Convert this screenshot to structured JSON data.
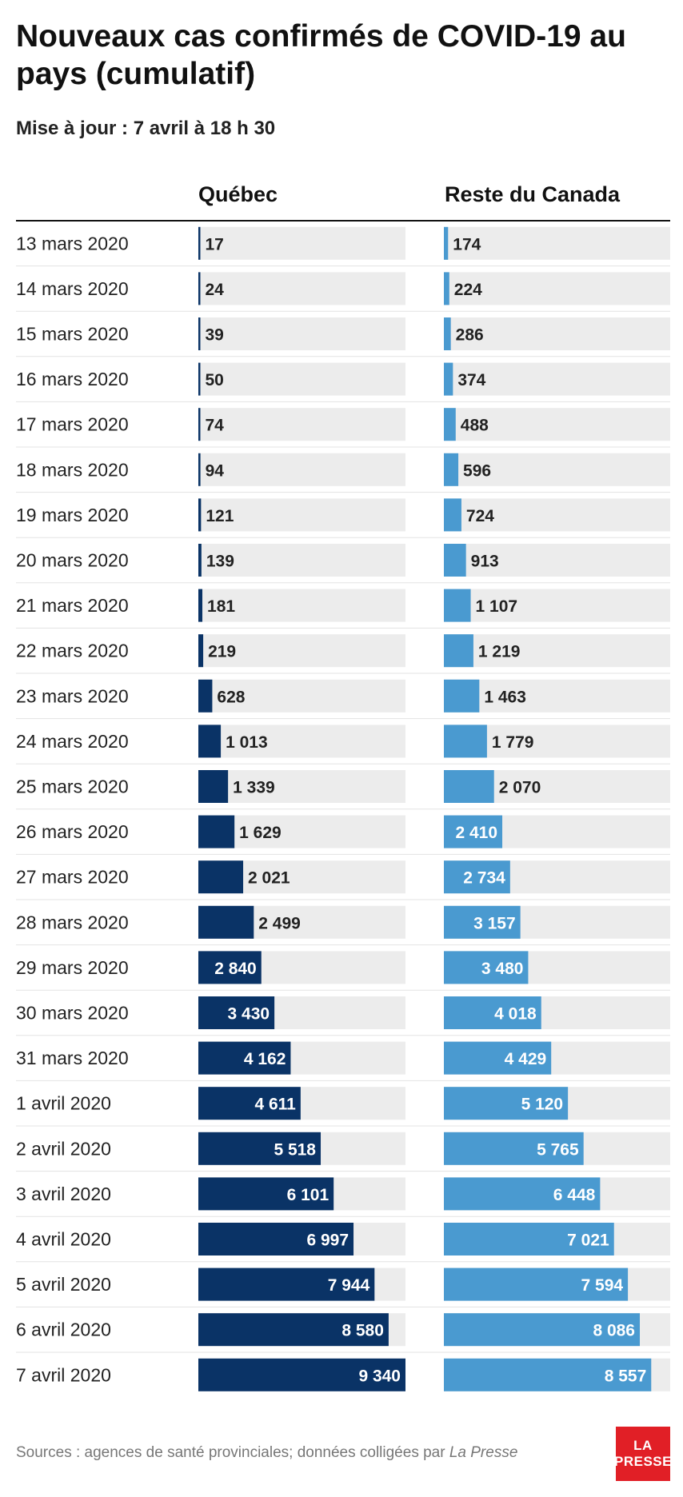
{
  "title": "Nouveaux cas confirmés de COVID-19 au pays (cumulatif)",
  "subtitle": "Mise à jour : 7 avril à 18 h 30",
  "source_text": "Sources : agences de santé provinciales; données colligées par ",
  "source_italic": "La Presse",
  "logo": {
    "line1": "LA",
    "line2": "PRESSE"
  },
  "colors": {
    "quebec": "#0a3366",
    "reste_du_canada": "#4a9ad0",
    "track": "#ececec",
    "logo": "#e11f26"
  },
  "chart_data": {
    "type": "bar",
    "orientation": "horizontal",
    "categories": [
      "13 mars 2020",
      "14 mars 2020",
      "15 mars 2020",
      "16 mars 2020",
      "17 mars 2020",
      "18 mars 2020",
      "19 mars 2020",
      "20 mars 2020",
      "21 mars 2020",
      "22 mars 2020",
      "23 mars 2020",
      "24 mars 2020",
      "25 mars 2020",
      "26 mars 2020",
      "27 mars 2020",
      "28 mars 2020",
      "29 mars 2020",
      "30 mars 2020",
      "31 mars 2020",
      "1 avril 2020",
      "2 avril 2020",
      "3 avril 2020",
      "4 avril 2020",
      "5 avril 2020",
      "6 avril 2020",
      "7 avril 2020"
    ],
    "series": [
      {
        "name": "Québec",
        "values": [
          17,
          24,
          39,
          50,
          74,
          94,
          121,
          139,
          181,
          219,
          628,
          1013,
          1339,
          1629,
          2021,
          2499,
          2840,
          3430,
          4162,
          4611,
          5518,
          6101,
          6997,
          7944,
          8580,
          9340
        ],
        "labels": [
          "17",
          "24",
          "39",
          "50",
          "74",
          "94",
          "121",
          "139",
          "181",
          "219",
          "628",
          "1 013",
          "1 339",
          "1 629",
          "2 021",
          "2 499",
          "2 840",
          "3 430",
          "4 162",
          "4 611",
          "5 518",
          "6 101",
          "6 997",
          "7 944",
          "8 580",
          "9 340"
        ]
      },
      {
        "name": "Reste du Canada",
        "values": [
          174,
          224,
          286,
          374,
          488,
          596,
          724,
          913,
          1107,
          1219,
          1463,
          1779,
          2070,
          2410,
          2734,
          3157,
          3480,
          4018,
          4429,
          5120,
          5765,
          6448,
          7021,
          7594,
          8086,
          8557
        ],
        "labels": [
          "174",
          "224",
          "286",
          "374",
          "488",
          "596",
          "724",
          "913",
          "1 107",
          "1 219",
          "1 463",
          "1 779",
          "2 070",
          "2 410",
          "2 734",
          "3 157",
          "3 480",
          "4 018",
          "4 429",
          "5 120",
          "5 765",
          "6 448",
          "7 021",
          "7 594",
          "8 086",
          "8 557"
        ]
      }
    ],
    "xlim": [
      0,
      9340
    ],
    "grid": false,
    "legend": "none"
  }
}
